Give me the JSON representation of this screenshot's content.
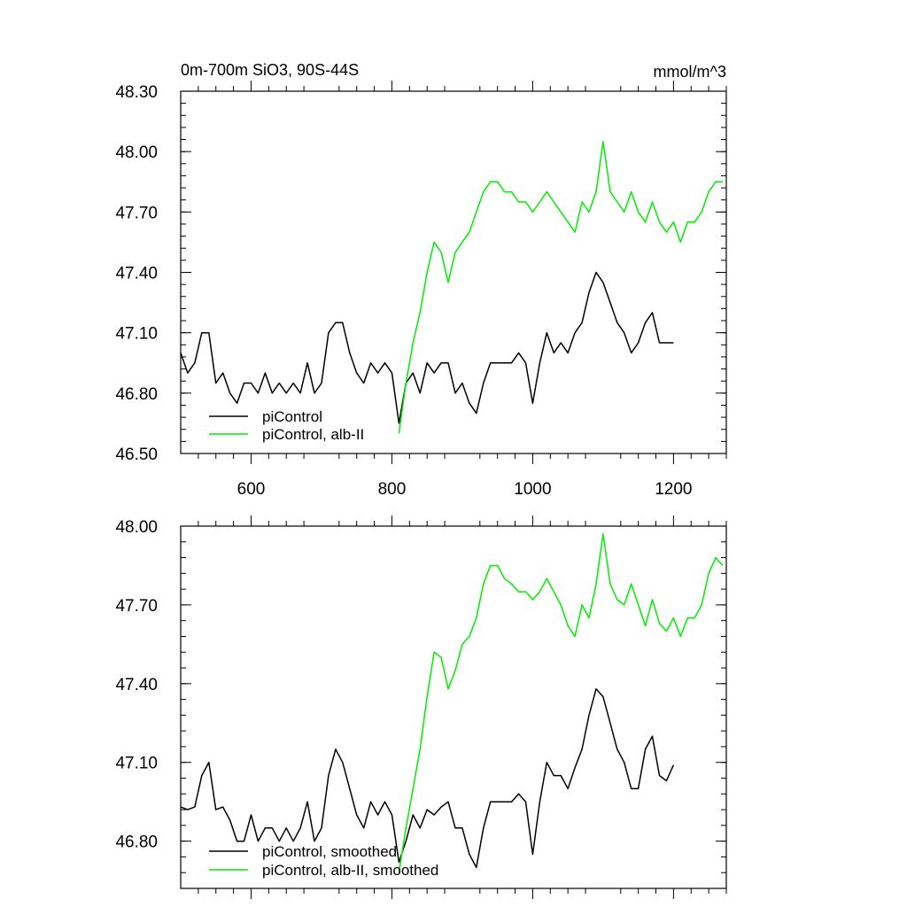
{
  "colors": {
    "black": "#000000",
    "green": "#00ee00"
  },
  "chart_data": [
    {
      "type": "line",
      "title": "0m-700m SiO3, 90S-44S",
      "unit_label": "mmol/m^3",
      "xlim": [
        500,
        1275
      ],
      "ylim": [
        46.5,
        48.3
      ],
      "x_ticks": [
        600,
        800,
        1000,
        1200
      ],
      "x_tick_labels": [
        "600",
        "800",
        "1000",
        "1200"
      ],
      "y_ticks": [
        46.5,
        46.8,
        47.1,
        47.4,
        47.7,
        48.0,
        48.3
      ],
      "y_tick_labels": [
        "46.50",
        "46.80",
        "47.10",
        "47.40",
        "47.70",
        "48.00",
        "48.30"
      ],
      "legend": [
        "piControl",
        "piControl, alb-II"
      ],
      "legend_position": "bottom-left",
      "series": [
        {
          "name": "piControl",
          "color": "#000000",
          "points": [
            [
              500,
              47.0
            ],
            [
              510,
              46.9
            ],
            [
              520,
              46.95
            ],
            [
              530,
              47.1
            ],
            [
              540,
              47.1
            ],
            [
              550,
              46.85
            ],
            [
              560,
              46.9
            ],
            [
              570,
              46.8
            ],
            [
              580,
              46.75
            ],
            [
              590,
              46.85
            ],
            [
              600,
              46.85
            ],
            [
              610,
              46.8
            ],
            [
              620,
              46.9
            ],
            [
              630,
              46.8
            ],
            [
              640,
              46.85
            ],
            [
              650,
              46.8
            ],
            [
              660,
              46.85
            ],
            [
              670,
              46.8
            ],
            [
              680,
              46.95
            ],
            [
              690,
              46.8
            ],
            [
              700,
              46.85
            ],
            [
              710,
              47.1
            ],
            [
              720,
              47.15
            ],
            [
              730,
              47.15
            ],
            [
              740,
              47.0
            ],
            [
              750,
              46.9
            ],
            [
              760,
              46.85
            ],
            [
              770,
              46.95
            ],
            [
              780,
              46.9
            ],
            [
              790,
              46.95
            ],
            [
              800,
              46.9
            ],
            [
              810,
              46.65
            ],
            [
              820,
              46.85
            ],
            [
              830,
              46.9
            ],
            [
              840,
              46.8
            ],
            [
              850,
              46.95
            ],
            [
              860,
              46.9
            ],
            [
              870,
              46.95
            ],
            [
              880,
              46.95
            ],
            [
              890,
              46.8
            ],
            [
              900,
              46.85
            ],
            [
              910,
              46.75
            ],
            [
              920,
              46.7
            ],
            [
              930,
              46.85
            ],
            [
              940,
              46.95
            ],
            [
              950,
              46.95
            ],
            [
              960,
              46.95
            ],
            [
              970,
              46.95
            ],
            [
              980,
              47.0
            ],
            [
              990,
              46.95
            ],
            [
              1000,
              46.75
            ],
            [
              1010,
              46.95
            ],
            [
              1020,
              47.1
            ],
            [
              1030,
              47.0
            ],
            [
              1040,
              47.05
            ],
            [
              1050,
              47.0
            ],
            [
              1060,
              47.1
            ],
            [
              1070,
              47.15
            ],
            [
              1080,
              47.3
            ],
            [
              1090,
              47.4
            ],
            [
              1100,
              47.35
            ],
            [
              1110,
              47.25
            ],
            [
              1120,
              47.15
            ],
            [
              1130,
              47.1
            ],
            [
              1140,
              47.0
            ],
            [
              1150,
              47.05
            ],
            [
              1160,
              47.15
            ],
            [
              1170,
              47.2
            ],
            [
              1180,
              47.05
            ],
            [
              1190,
              47.05
            ],
            [
              1200,
              47.05
            ]
          ]
        },
        {
          "name": "piControl, alb-II",
          "color": "#00ee00",
          "points": [
            [
              810,
              46.6
            ],
            [
              820,
              46.85
            ],
            [
              830,
              47.05
            ],
            [
              840,
              47.2
            ],
            [
              850,
              47.4
            ],
            [
              860,
              47.55
            ],
            [
              870,
              47.5
            ],
            [
              880,
              47.35
            ],
            [
              890,
              47.5
            ],
            [
              900,
              47.55
            ],
            [
              910,
              47.6
            ],
            [
              920,
              47.7
            ],
            [
              930,
              47.8
            ],
            [
              940,
              47.85
            ],
            [
              950,
              47.85
            ],
            [
              960,
              47.8
            ],
            [
              970,
              47.8
            ],
            [
              980,
              47.75
            ],
            [
              990,
              47.75
            ],
            [
              1000,
              47.7
            ],
            [
              1010,
              47.75
            ],
            [
              1020,
              47.8
            ],
            [
              1030,
              47.75
            ],
            [
              1040,
              47.7
            ],
            [
              1050,
              47.65
            ],
            [
              1060,
              47.6
            ],
            [
              1070,
              47.75
            ],
            [
              1080,
              47.7
            ],
            [
              1090,
              47.8
            ],
            [
              1100,
              48.05
            ],
            [
              1110,
              47.8
            ],
            [
              1120,
              47.75
            ],
            [
              1130,
              47.7
            ],
            [
              1140,
              47.8
            ],
            [
              1150,
              47.7
            ],
            [
              1160,
              47.65
            ],
            [
              1170,
              47.75
            ],
            [
              1180,
              47.65
            ],
            [
              1190,
              47.6
            ],
            [
              1200,
              47.65
            ],
            [
              1210,
              47.55
            ],
            [
              1220,
              47.65
            ],
            [
              1230,
              47.65
            ],
            [
              1240,
              47.7
            ],
            [
              1250,
              47.8
            ],
            [
              1260,
              47.85
            ],
            [
              1270,
              47.85
            ]
          ]
        }
      ]
    },
    {
      "type": "line",
      "xlim": [
        500,
        1275
      ],
      "ylim": [
        46.62,
        48.0
      ],
      "x_ticks": [
        600,
        800,
        1000,
        1200
      ],
      "y_ticks": [
        46.8,
        47.1,
        47.4,
        47.7,
        48.0
      ],
      "y_tick_labels": [
        "46.80",
        "47.10",
        "47.40",
        "47.70",
        "48.00"
      ],
      "legend": [
        "piControl, smoothed",
        "piControl, alb-II, smoothed"
      ],
      "legend_position": "bottom-left",
      "series": [
        {
          "name": "piControl, smoothed",
          "color": "#000000",
          "points": [
            [
              500,
              46.93
            ],
            [
              510,
              46.92
            ],
            [
              520,
              46.93
            ],
            [
              530,
              47.05
            ],
            [
              540,
              47.1
            ],
            [
              550,
              46.92
            ],
            [
              560,
              46.93
            ],
            [
              570,
              46.88
            ],
            [
              580,
              46.8
            ],
            [
              590,
              46.8
            ],
            [
              600,
              46.9
            ],
            [
              610,
              46.8
            ],
            [
              620,
              46.85
            ],
            [
              630,
              46.85
            ],
            [
              640,
              46.8
            ],
            [
              650,
              46.85
            ],
            [
              660,
              46.8
            ],
            [
              670,
              46.85
            ],
            [
              680,
              46.95
            ],
            [
              690,
              46.8
            ],
            [
              700,
              46.85
            ],
            [
              710,
              47.05
            ],
            [
              720,
              47.15
            ],
            [
              730,
              47.1
            ],
            [
              740,
              47.0
            ],
            [
              750,
              46.9
            ],
            [
              760,
              46.85
            ],
            [
              770,
              46.95
            ],
            [
              780,
              46.9
            ],
            [
              790,
              46.95
            ],
            [
              800,
              46.9
            ],
            [
              810,
              46.72
            ],
            [
              820,
              46.8
            ],
            [
              830,
              46.9
            ],
            [
              840,
              46.85
            ],
            [
              850,
              46.92
            ],
            [
              860,
              46.9
            ],
            [
              870,
              46.93
            ],
            [
              880,
              46.95
            ],
            [
              890,
              46.85
            ],
            [
              900,
              46.85
            ],
            [
              910,
              46.75
            ],
            [
              920,
              46.7
            ],
            [
              930,
              46.85
            ],
            [
              940,
              46.95
            ],
            [
              950,
              46.95
            ],
            [
              960,
              46.95
            ],
            [
              970,
              46.95
            ],
            [
              980,
              46.98
            ],
            [
              990,
              46.95
            ],
            [
              1000,
              46.75
            ],
            [
              1010,
              46.95
            ],
            [
              1020,
              47.1
            ],
            [
              1030,
              47.05
            ],
            [
              1040,
              47.05
            ],
            [
              1050,
              47.0
            ],
            [
              1060,
              47.08
            ],
            [
              1070,
              47.15
            ],
            [
              1080,
              47.28
            ],
            [
              1090,
              47.38
            ],
            [
              1100,
              47.35
            ],
            [
              1110,
              47.25
            ],
            [
              1120,
              47.15
            ],
            [
              1130,
              47.1
            ],
            [
              1140,
              47.0
            ],
            [
              1150,
              47.0
            ],
            [
              1160,
              47.15
            ],
            [
              1170,
              47.2
            ],
            [
              1180,
              47.05
            ],
            [
              1190,
              47.03
            ],
            [
              1200,
              47.09
            ]
          ]
        },
        {
          "name": "piControl, alb-II, smoothed",
          "color": "#00ee00",
          "points": [
            [
              810,
              46.68
            ],
            [
              820,
              46.85
            ],
            [
              830,
              47.0
            ],
            [
              840,
              47.15
            ],
            [
              850,
              47.35
            ],
            [
              860,
              47.52
            ],
            [
              870,
              47.5
            ],
            [
              880,
              47.38
            ],
            [
              890,
              47.45
            ],
            [
              900,
              47.55
            ],
            [
              910,
              47.58
            ],
            [
              920,
              47.65
            ],
            [
              930,
              47.78
            ],
            [
              940,
              47.85
            ],
            [
              950,
              47.85
            ],
            [
              960,
              47.8
            ],
            [
              970,
              47.78
            ],
            [
              980,
              47.75
            ],
            [
              990,
              47.75
            ],
            [
              1000,
              47.72
            ],
            [
              1010,
              47.75
            ],
            [
              1020,
              47.8
            ],
            [
              1030,
              47.75
            ],
            [
              1040,
              47.7
            ],
            [
              1050,
              47.62
            ],
            [
              1060,
              47.58
            ],
            [
              1070,
              47.7
            ],
            [
              1080,
              47.65
            ],
            [
              1090,
              47.78
            ],
            [
              1100,
              47.97
            ],
            [
              1110,
              47.78
            ],
            [
              1120,
              47.72
            ],
            [
              1130,
              47.7
            ],
            [
              1140,
              47.78
            ],
            [
              1150,
              47.7
            ],
            [
              1160,
              47.62
            ],
            [
              1170,
              47.72
            ],
            [
              1180,
              47.63
            ],
            [
              1190,
              47.6
            ],
            [
              1200,
              47.65
            ],
            [
              1210,
              47.58
            ],
            [
              1220,
              47.65
            ],
            [
              1230,
              47.65
            ],
            [
              1240,
              47.7
            ],
            [
              1250,
              47.82
            ],
            [
              1260,
              47.88
            ],
            [
              1270,
              47.85
            ]
          ]
        }
      ]
    }
  ]
}
